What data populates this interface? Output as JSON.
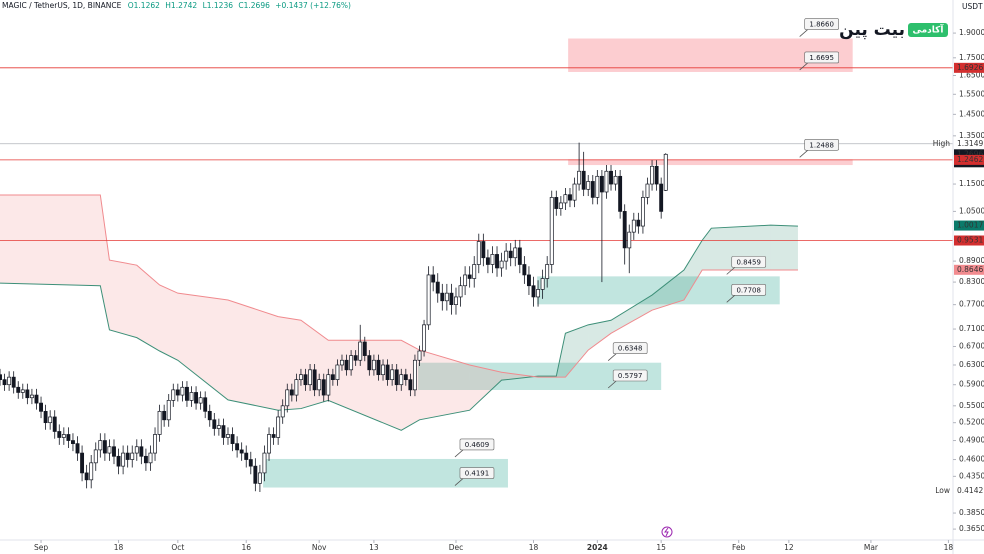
{
  "chart_data": {
    "type": "candlestick",
    "header": [
      "MAGIC / TetherUS, 1D, BINANCE",
      "O1.1262",
      "H1.2742",
      "L1.1236",
      "C1.2696",
      "+0.1437 (+12.76%)"
    ],
    "currency": "USDT",
    "logo": {
      "title": "بیت پین",
      "badge": "آکادمی",
      "color": "#2dbf6c"
    },
    "log_scale": true,
    "xlim": [
      0,
      209
    ],
    "ylim": [
      0.352,
      2.121
    ],
    "xticks": [
      {
        "value": 9,
        "label": "Sep"
      },
      {
        "value": 26,
        "label": "18"
      },
      {
        "value": 39,
        "label": "Oct"
      },
      {
        "value": 54,
        "label": "16"
      },
      {
        "value": 70,
        "label": "Nov"
      },
      {
        "value": 82,
        "label": "13"
      },
      {
        "value": 100,
        "label": "Dec"
      },
      {
        "value": 117,
        "label": "18"
      },
      {
        "value": 131,
        "label": "2024"
      },
      {
        "value": 145,
        "label": "15"
      },
      {
        "value": 162,
        "label": "Feb"
      },
      {
        "value": 173,
        "label": "12"
      },
      {
        "value": 191,
        "label": "Mar"
      },
      {
        "value": 208,
        "label": "18"
      }
    ],
    "yticks": [
      {
        "value": 1.9,
        "label": "1.9000"
      },
      {
        "value": 1.75,
        "label": "1.7500"
      },
      {
        "value": 1.65,
        "label": "1.6500"
      },
      {
        "value": 1.55,
        "label": "1.5500"
      },
      {
        "value": 1.45,
        "label": "1.4500"
      },
      {
        "value": 1.35,
        "label": "1.3500"
      },
      {
        "value": 1.15,
        "label": "1.1500"
      },
      {
        "value": 1.05,
        "label": "1.0500"
      },
      {
        "value": 0.89,
        "label": "0.8900"
      },
      {
        "value": 0.83,
        "label": "0.8300"
      },
      {
        "value": 0.77,
        "label": "0.7700"
      },
      {
        "value": 0.71,
        "label": "0.7100"
      },
      {
        "value": 0.67,
        "label": "0.6700"
      },
      {
        "value": 0.63,
        "label": "0.6300"
      },
      {
        "value": 0.59,
        "label": "0.5900"
      },
      {
        "value": 0.55,
        "label": "0.5500"
      },
      {
        "value": 0.52,
        "label": "0.5200"
      },
      {
        "value": 0.49,
        "label": "0.4900"
      },
      {
        "value": 0.46,
        "label": "0.4600"
      },
      {
        "value": 0.435,
        "label": "0.4350"
      },
      {
        "value": 0.385,
        "label": "0.3850"
      },
      {
        "value": 0.365,
        "label": "0.3650"
      }
    ],
    "up_color": "#ffffff",
    "down_color": "#131722",
    "x": [
      0,
      1,
      2,
      3,
      4,
      5,
      6,
      7,
      8,
      9,
      10,
      11,
      12,
      13,
      14,
      15,
      16,
      17,
      18,
      19,
      20,
      21,
      22,
      23,
      24,
      25,
      26,
      27,
      28,
      29,
      30,
      31,
      32,
      33,
      34,
      35,
      36,
      37,
      38,
      39,
      40,
      41,
      42,
      43,
      44,
      45,
      46,
      47,
      48,
      49,
      50,
      51,
      52,
      53,
      54,
      55,
      56,
      57,
      58,
      59,
      60,
      61,
      62,
      63,
      64,
      65,
      66,
      67,
      68,
      69,
      70,
      71,
      72,
      73,
      74,
      75,
      76,
      77,
      78,
      79,
      80,
      81,
      82,
      83,
      84,
      85,
      86,
      87,
      88,
      89,
      90,
      91,
      92,
      93,
      94,
      95,
      96,
      97,
      98,
      99,
      100,
      101,
      102,
      103,
      104,
      105,
      106,
      107,
      108,
      109,
      110,
      111,
      112,
      113,
      114,
      115,
      116,
      117,
      118,
      119,
      120,
      121,
      122,
      123,
      124,
      125,
      126,
      127,
      128,
      129,
      130,
      131,
      132,
      133,
      134,
      135,
      136,
      137,
      138,
      139,
      140,
      141,
      142,
      143,
      144,
      145,
      146
    ],
    "open": [
      0.61,
      0.6,
      0.59,
      0.605,
      0.585,
      0.575,
      0.58,
      0.565,
      0.57,
      0.555,
      0.54,
      0.52,
      0.53,
      0.505,
      0.495,
      0.5,
      0.49,
      0.485,
      0.47,
      0.44,
      0.43,
      0.455,
      0.475,
      0.49,
      0.47,
      0.48,
      0.465,
      0.45,
      0.47,
      0.46,
      0.47,
      0.48,
      0.465,
      0.455,
      0.47,
      0.5,
      0.54,
      0.525,
      0.56,
      0.58,
      0.57,
      0.585,
      0.56,
      0.575,
      0.555,
      0.565,
      0.54,
      0.525,
      0.51,
      0.515,
      0.495,
      0.5,
      0.485,
      0.475,
      0.47,
      0.46,
      0.45,
      0.425,
      0.44,
      0.47,
      0.5,
      0.495,
      0.53,
      0.55,
      0.58,
      0.57,
      0.6,
      0.61,
      0.59,
      0.62,
      0.58,
      0.6,
      0.57,
      0.61,
      0.6,
      0.63,
      0.64,
      0.62,
      0.65,
      0.64,
      0.68,
      0.65,
      0.62,
      0.64,
      0.61,
      0.63,
      0.6,
      0.62,
      0.59,
      0.61,
      0.6,
      0.58,
      0.64,
      0.66,
      0.72,
      0.85,
      0.83,
      0.8,
      0.78,
      0.8,
      0.77,
      0.79,
      0.82,
      0.85,
      0.84,
      0.88,
      0.95,
      0.9,
      0.88,
      0.91,
      0.87,
      0.89,
      0.92,
      0.9,
      0.93,
      0.88,
      0.85,
      0.82,
      0.79,
      0.81,
      0.84,
      0.88,
      1.1,
      1.06,
      1.08,
      1.11,
      1.09,
      1.15,
      1.2,
      1.13,
      1.16,
      1.1,
      1.18,
      1.12,
      1.2,
      1.15,
      1.18,
      1.05,
      0.93,
      0.98,
      1.02,
      1.0,
      1.1,
      1.15,
      1.22,
      1.15,
      1.1262
    ],
    "high": [
      0.622,
      0.612,
      0.617,
      0.617,
      0.597,
      0.592,
      0.592,
      0.582,
      0.582,
      0.567,
      0.552,
      0.542,
      0.542,
      0.517,
      0.512,
      0.512,
      0.502,
      0.497,
      0.482,
      0.452,
      0.467,
      0.487,
      0.502,
      0.502,
      0.492,
      0.492,
      0.477,
      0.482,
      0.482,
      0.482,
      0.492,
      0.492,
      0.477,
      0.482,
      0.512,
      0.552,
      0.552,
      0.572,
      0.592,
      0.592,
      0.597,
      0.597,
      0.587,
      0.587,
      0.577,
      0.577,
      0.552,
      0.537,
      0.527,
      0.527,
      0.512,
      0.512,
      0.497,
      0.487,
      0.482,
      0.472,
      0.462,
      0.452,
      0.482,
      0.512,
      0.512,
      0.542,
      0.562,
      0.592,
      0.592,
      0.612,
      0.622,
      0.622,
      0.632,
      0.632,
      0.612,
      0.612,
      0.622,
      0.622,
      0.642,
      0.652,
      0.652,
      0.662,
      0.662,
      0.72,
      0.692,
      0.662,
      0.652,
      0.652,
      0.642,
      0.642,
      0.632,
      0.632,
      0.622,
      0.622,
      0.612,
      0.652,
      0.672,
      0.732,
      0.875,
      0.875,
      0.855,
      0.825,
      0.825,
      0.825,
      0.815,
      0.845,
      0.875,
      0.875,
      0.905,
      0.975,
      0.975,
      0.925,
      0.935,
      0.935,
      0.915,
      0.945,
      0.945,
      0.955,
      0.955,
      0.905,
      0.875,
      0.845,
      0.835,
      0.865,
      0.905,
      1.125,
      1.125,
      1.105,
      1.135,
      1.135,
      1.175,
      1.32,
      1.28,
      1.185,
      1.185,
      1.205,
      1.205,
      1.225,
      1.225,
      1.205,
      1.205,
      1.075,
      1.005,
      1.045,
      1.045,
      1.125,
      1.175,
      1.245,
      1.245,
      1.175,
      1.2742
    ],
    "low": [
      0.588,
      0.578,
      0.578,
      0.573,
      0.563,
      0.563,
      0.553,
      0.553,
      0.543,
      0.528,
      0.508,
      0.508,
      0.493,
      0.483,
      0.483,
      0.478,
      0.473,
      0.458,
      0.428,
      0.418,
      0.418,
      0.443,
      0.463,
      0.458,
      0.458,
      0.453,
      0.438,
      0.438,
      0.448,
      0.448,
      0.458,
      0.453,
      0.443,
      0.443,
      0.458,
      0.488,
      0.513,
      0.513,
      0.548,
      0.558,
      0.558,
      0.548,
      0.548,
      0.543,
      0.543,
      0.528,
      0.513,
      0.498,
      0.498,
      0.483,
      0.483,
      0.473,
      0.463,
      0.458,
      0.448,
      0.438,
      0.414,
      0.413,
      0.428,
      0.458,
      0.483,
      0.483,
      0.518,
      0.538,
      0.558,
      0.558,
      0.588,
      0.578,
      0.578,
      0.568,
      0.568,
      0.558,
      0.558,
      0.588,
      0.588,
      0.618,
      0.608,
      0.608,
      0.628,
      0.628,
      0.638,
      0.608,
      0.608,
      0.598,
      0.598,
      0.588,
      0.588,
      0.578,
      0.578,
      0.588,
      0.568,
      0.568,
      0.628,
      0.648,
      0.708,
      0.805,
      0.775,
      0.755,
      0.755,
      0.745,
      0.745,
      0.765,
      0.795,
      0.815,
      0.815,
      0.855,
      0.875,
      0.855,
      0.855,
      0.845,
      0.845,
      0.865,
      0.875,
      0.875,
      0.855,
      0.825,
      0.795,
      0.765,
      0.765,
      0.785,
      0.815,
      0.855,
      1.035,
      1.035,
      1.055,
      1.065,
      1.065,
      1.125,
      1.105,
      1.105,
      1.075,
      1.075,
      0.83,
      1.095,
      1.125,
      1.125,
      1.025,
      0.88,
      0.855,
      0.955,
      0.975,
      0.975,
      1.075,
      1.125,
      1.125,
      1.025,
      1.1236
    ],
    "close": [
      0.6,
      0.59,
      0.605,
      0.585,
      0.575,
      0.58,
      0.565,
      0.57,
      0.555,
      0.54,
      0.52,
      0.53,
      0.505,
      0.495,
      0.5,
      0.49,
      0.485,
      0.47,
      0.44,
      0.43,
      0.455,
      0.475,
      0.49,
      0.47,
      0.48,
      0.465,
      0.45,
      0.47,
      0.46,
      0.47,
      0.48,
      0.465,
      0.455,
      0.47,
      0.5,
      0.54,
      0.525,
      0.56,
      0.58,
      0.57,
      0.585,
      0.56,
      0.575,
      0.555,
      0.565,
      0.54,
      0.525,
      0.51,
      0.515,
      0.495,
      0.5,
      0.485,
      0.475,
      0.47,
      0.46,
      0.45,
      0.425,
      0.44,
      0.47,
      0.5,
      0.495,
      0.53,
      0.55,
      0.58,
      0.57,
      0.6,
      0.61,
      0.59,
      0.62,
      0.58,
      0.6,
      0.57,
      0.61,
      0.6,
      0.63,
      0.64,
      0.62,
      0.65,
      0.64,
      0.68,
      0.65,
      0.62,
      0.64,
      0.61,
      0.63,
      0.6,
      0.62,
      0.59,
      0.61,
      0.6,
      0.58,
      0.64,
      0.66,
      0.72,
      0.85,
      0.83,
      0.8,
      0.78,
      0.8,
      0.77,
      0.79,
      0.82,
      0.85,
      0.84,
      0.88,
      0.95,
      0.9,
      0.88,
      0.91,
      0.87,
      0.89,
      0.92,
      0.9,
      0.93,
      0.88,
      0.85,
      0.82,
      0.79,
      0.81,
      0.84,
      0.88,
      1.1,
      1.06,
      1.08,
      1.11,
      1.09,
      1.15,
      1.2,
      1.13,
      1.16,
      1.1,
      1.18,
      1.12,
      1.2,
      1.15,
      1.18,
      1.05,
      0.93,
      0.98,
      1.02,
      1.0,
      1.1,
      1.15,
      1.22,
      1.15,
      1.05,
      1.2696
    ],
    "cloud": {
      "x": [
        0,
        22,
        24,
        30,
        35,
        39,
        50,
        61,
        66,
        72,
        88,
        92,
        103,
        110,
        118,
        122,
        124,
        129,
        134,
        143,
        150,
        154,
        156,
        169,
        175
      ],
      "span_a": [
        0.827,
        0.82,
        0.708,
        0.69,
        0.66,
        0.64,
        0.561,
        0.542,
        0.545,
        0.56,
        0.507,
        0.525,
        0.542,
        0.599,
        0.607,
        0.607,
        0.7,
        0.72,
        0.731,
        0.795,
        0.864,
        0.954,
        0.993,
        1.003,
        1.0
      ],
      "span_b": [
        1.109,
        1.109,
        0.893,
        0.878,
        0.822,
        0.8,
        0.782,
        0.74,
        0.731,
        0.684,
        0.684,
        0.662,
        0.63,
        0.615,
        0.605,
        0.605,
        0.605,
        0.662,
        0.7,
        0.756,
        0.782,
        0.864,
        0.864,
        0.864,
        0.864
      ],
      "color_a": "#3d8f78",
      "color_b": "#f08a8e"
    },
    "zones": [
      {
        "top": {
          "value": 1.866,
          "label": "1.8660"
        },
        "bottom": 1.6695,
        "x": [
          124.6,
          187
        ],
        "color": "#f23645"
      },
      {
        "top": 1.2488,
        "bottom": 1.225,
        "x": [
          124.6,
          187
        ],
        "color": "#f23645"
      },
      {
        "top": 0.8459,
        "bottom": 0.7708,
        "x": [
          117.8,
          171
        ],
        "color": "#089981"
      },
      {
        "top": 0.6348,
        "bottom": 0.5797,
        "x": [
          91.7,
          145
        ],
        "color": "#089981"
      },
      {
        "top": 0.4609,
        "bottom": 0.4191,
        "x": [
          57.7,
          111.4
        ],
        "color": "#089981"
      }
    ],
    "hlines": [
      {
        "value": 1.6926,
        "color": "#e53935"
      },
      {
        "value": 1.3149,
        "color": "#b0b3bb"
      },
      {
        "value": 1.2462,
        "color": "#e53935"
      },
      {
        "value": 0.9531,
        "color": "#e53935"
      }
    ],
    "price_labels": [
      {
        "value": 1.6926,
        "bg": "#d32f2f",
        "fg": "#ffffff"
      },
      {
        "value": 1.3149,
        "bg": "#ffffff",
        "fg": "#2962ff",
        "name": "High"
      },
      {
        "value": 1.2696,
        "bg": "#131722",
        "fg": "#ffffff",
        "countdown": "11:40:1"
      },
      {
        "value": 1.2462,
        "bg": "#d32f2f",
        "fg": "#ffffff"
      },
      {
        "value": 1.0017,
        "bg": "#0b7a6a",
        "fg": "#ffffff"
      },
      {
        "value": 0.9531,
        "bg": "#d32f2f",
        "fg": "#ffffff"
      },
      {
        "value": 0.8646,
        "bg": "#f28b8f",
        "fg": "#ffffff"
      },
      {
        "value": 0.4142,
        "bg": "#ffffff",
        "fg": "#2962ff",
        "name": "Low"
      }
    ]
  }
}
